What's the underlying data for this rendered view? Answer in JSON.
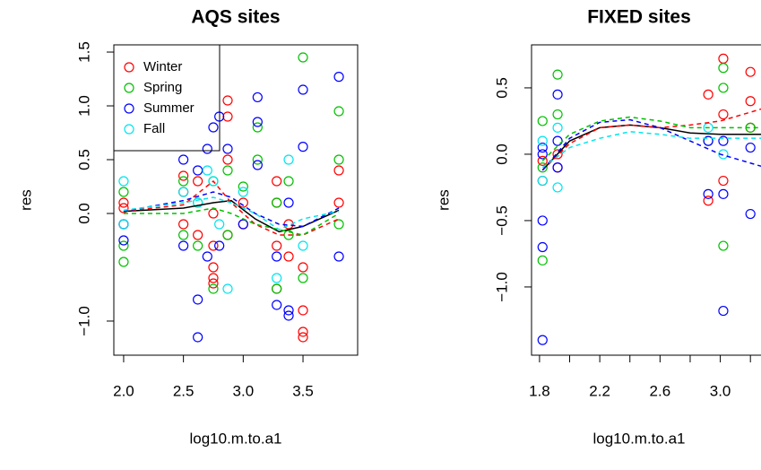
{
  "chart_data": [
    {
      "type": "scatter",
      "title": "AQS sites",
      "xlabel": "log10.m.to.a1",
      "ylabel": "res",
      "legend": "topleft",
      "xlim": [
        1.918,
        3.957
      ],
      "ylim": [
        -1.317,
        1.567
      ],
      "xticks": [
        {
          "value": 2.0,
          "label": "2.0"
        },
        {
          "value": 2.5,
          "label": "2.5"
        },
        {
          "value": 3.0,
          "label": "3.0"
        },
        {
          "value": 3.5,
          "label": "3.5"
        }
      ],
      "yticks": [
        {
          "value": -1.0,
          "label": "−1.0"
        },
        {
          "value": 0.0,
          "label": "0.0"
        },
        {
          "value": 0.5,
          "label": "0.5"
        },
        {
          "value": 1.0,
          "label": "1.0"
        },
        {
          "value": 1.5,
          "label": "1.5"
        }
      ],
      "series": [
        {
          "name": "Winter",
          "color": "#ff0000",
          "x": [
            2.0,
            2.0,
            2.0,
            2.5,
            2.5,
            2.5,
            2.62,
            2.62,
            2.75,
            2.75,
            2.75,
            2.75,
            2.75,
            2.87,
            2.87,
            2.87,
            2.87,
            3.0,
            3.0,
            3.28,
            3.28,
            3.28,
            3.28,
            3.38,
            3.38,
            3.5,
            3.5,
            3.5,
            3.5,
            3.8,
            3.8
          ],
          "values": [
            0.05,
            -0.1,
            0.1,
            0.2,
            -0.1,
            0.35,
            0.3,
            -0.2,
            -0.5,
            -0.6,
            -0.3,
            0.0,
            -0.65,
            0.9,
            1.05,
            0.5,
            -0.2,
            0.1,
            -0.1,
            0.3,
            -0.3,
            -0.7,
            0.1,
            -0.1,
            -0.4,
            -0.9,
            -1.1,
            -1.15,
            -0.5,
            0.4,
            0.1
          ]
        },
        {
          "name": "Spring",
          "color": "#00c000",
          "x": [
            2.0,
            2.0,
            2.0,
            2.5,
            2.5,
            2.62,
            2.62,
            2.75,
            2.75,
            2.87,
            2.87,
            3.0,
            3.12,
            3.12,
            3.28,
            3.28,
            3.38,
            3.38,
            3.5,
            3.5,
            3.8,
            3.8,
            3.8
          ],
          "values": [
            -0.3,
            -0.45,
            0.2,
            0.3,
            -0.2,
            0.1,
            -0.3,
            0.3,
            -0.7,
            -0.2,
            0.4,
            0.25,
            0.8,
            0.5,
            -0.7,
            0.1,
            0.3,
            -0.2,
            1.45,
            -0.6,
            0.95,
            0.5,
            -0.1
          ]
        },
        {
          "name": "Summer",
          "color": "#0000ff",
          "x": [
            2.0,
            2.0,
            2.5,
            2.5,
            2.62,
            2.62,
            2.62,
            2.7,
            2.7,
            2.75,
            2.8,
            2.8,
            2.87,
            3.0,
            3.12,
            3.12,
            3.12,
            3.28,
            3.28,
            3.38,
            3.38,
            3.38,
            3.5,
            3.5,
            3.8,
            3.8
          ],
          "values": [
            -0.1,
            -0.25,
            -0.3,
            0.5,
            -0.8,
            -1.15,
            0.4,
            0.6,
            -0.4,
            0.8,
            0.9,
            -0.3,
            0.6,
            -0.1,
            1.08,
            0.85,
            0.45,
            -0.85,
            -0.4,
            -0.9,
            -0.95,
            0.1,
            1.15,
            0.62,
            1.27,
            -0.4
          ]
        },
        {
          "name": "Fall",
          "color": "#00e5ee",
          "x": [
            2.0,
            2.0,
            2.5,
            2.62,
            2.7,
            2.75,
            2.8,
            2.87,
            3.0,
            3.28,
            3.38,
            3.5
          ],
          "values": [
            0.3,
            -0.1,
            0.2,
            0.1,
            0.4,
            0.3,
            -0.1,
            -0.7,
            0.2,
            -0.6,
            0.5,
            -0.3
          ]
        }
      ],
      "lines": [
        {
          "color": "#000000",
          "style": "solid",
          "x": [
            2.0,
            2.5,
            2.75,
            2.9,
            3.1,
            3.3,
            3.5,
            3.8
          ],
          "values": [
            0.02,
            0.05,
            0.1,
            0.12,
            -0.05,
            -0.17,
            -0.12,
            0.03
          ]
        },
        {
          "color": "#ff0000",
          "style": "dashed",
          "x": [
            2.0,
            2.5,
            2.75,
            2.9,
            3.1,
            3.3,
            3.5,
            3.8
          ],
          "values": [
            0.02,
            0.08,
            0.3,
            0.1,
            -0.1,
            -0.2,
            -0.2,
            -0.05
          ]
        },
        {
          "color": "#00c000",
          "style": "dashed",
          "x": [
            2.0,
            2.5,
            2.75,
            2.9,
            3.1,
            3.3,
            3.5,
            3.8
          ],
          "values": [
            0.0,
            0.0,
            0.05,
            0.0,
            -0.1,
            -0.15,
            -0.2,
            0.0
          ]
        },
        {
          "color": "#0000ff",
          "style": "dashed",
          "x": [
            2.0,
            2.5,
            2.75,
            2.9,
            3.1,
            3.3,
            3.5,
            3.8
          ],
          "values": [
            0.02,
            0.12,
            0.2,
            0.15,
            0.0,
            -0.1,
            -0.12,
            0.05
          ]
        },
        {
          "color": "#00e5ee",
          "style": "dashed",
          "x": [
            2.0,
            2.5,
            2.75,
            2.9,
            3.1,
            3.3,
            3.5,
            3.8
          ],
          "values": [
            0.03,
            0.1,
            0.15,
            0.1,
            0.0,
            -0.15,
            -0.05,
            0.02
          ]
        }
      ]
    },
    {
      "type": "scatter",
      "title": "FIXED sites",
      "xlabel": "log10.m.to.a1",
      "ylabel": "res",
      "xlim": [
        1.747,
        3.3
      ],
      "ylim": [
        -1.514,
        0.824
      ],
      "xticks": [
        {
          "value": 1.8,
          "label": "1.8"
        },
        {
          "value": 2.0,
          "label": null
        },
        {
          "value": 2.2,
          "label": "2.2"
        },
        {
          "value": 2.4,
          "label": null
        },
        {
          "value": 2.6,
          "label": "2.6"
        },
        {
          "value": 2.8,
          "label": null
        },
        {
          "value": 3.0,
          "label": "3.0"
        },
        {
          "value": 3.2,
          "label": null
        }
      ],
      "yticks": [
        {
          "value": -1.0,
          "label": "−1.0"
        },
        {
          "value": -0.5,
          "label": "−0.5"
        },
        {
          "value": 0.0,
          "label": "0.0"
        },
        {
          "value": 0.5,
          "label": "0.5"
        }
      ],
      "series": [
        {
          "color": "#ff0000",
          "x": [
            1.82,
            1.82,
            1.92,
            1.92,
            2.92,
            2.92,
            3.02,
            3.02,
            3.02,
            3.2,
            3.2,
            3.2
          ],
          "values": [
            -0.05,
            -0.2,
            0.0,
            -0.1,
            0.45,
            -0.35,
            0.72,
            0.3,
            -0.2,
            0.62,
            0.4,
            0.2
          ]
        },
        {
          "color": "#00c000",
          "x": [
            1.82,
            1.82,
            1.82,
            1.92,
            1.92,
            2.92,
            3.02,
            3.02,
            3.02,
            3.2
          ],
          "values": [
            0.25,
            -0.8,
            -0.1,
            0.6,
            0.3,
            0.1,
            0.65,
            0.5,
            -0.69,
            0.2
          ]
        },
        {
          "color": "#0000ff",
          "x": [
            1.82,
            1.82,
            1.82,
            1.82,
            1.82,
            1.92,
            1.92,
            1.92,
            2.92,
            2.92,
            3.02,
            3.02,
            3.02,
            3.2,
            3.2
          ],
          "values": [
            0.05,
            -0.5,
            -0.7,
            -1.4,
            0.0,
            0.45,
            0.1,
            -0.1,
            0.1,
            -0.3,
            0.1,
            -0.3,
            -1.18,
            -0.45,
            0.05
          ]
        },
        {
          "color": "#00e5ee",
          "x": [
            1.82,
            1.82,
            1.92,
            1.92,
            2.92,
            3.02
          ],
          "values": [
            -0.2,
            0.1,
            -0.25,
            0.2,
            0.2,
            0.0
          ]
        }
      ],
      "lines": [
        {
          "color": "#000000",
          "style": "solid",
          "x": [
            1.82,
            2.0,
            2.2,
            2.4,
            2.6,
            2.8,
            3.0,
            3.3
          ],
          "values": [
            -0.12,
            0.1,
            0.2,
            0.22,
            0.2,
            0.16,
            0.15,
            0.15
          ]
        },
        {
          "color": "#ff0000",
          "style": "dashed",
          "x": [
            1.82,
            2.0,
            2.2,
            2.4,
            2.6,
            2.8,
            3.0,
            3.3
          ],
          "values": [
            -0.12,
            0.08,
            0.2,
            0.22,
            0.2,
            0.22,
            0.25,
            0.35
          ]
        },
        {
          "color": "#00c000",
          "style": "dashed",
          "x": [
            1.82,
            2.0,
            2.2,
            2.4,
            2.6,
            2.8,
            3.0,
            3.3
          ],
          "values": [
            -0.05,
            0.15,
            0.25,
            0.28,
            0.25,
            0.2,
            0.2,
            0.2
          ]
        },
        {
          "color": "#0000ff",
          "style": "dashed",
          "x": [
            1.82,
            2.0,
            2.2,
            2.4,
            2.6,
            2.8,
            3.0,
            3.3
          ],
          "values": [
            -0.12,
            0.12,
            0.24,
            0.26,
            0.2,
            0.1,
            0.0,
            -0.1
          ]
        },
        {
          "color": "#00e5ee",
          "style": "dashed",
          "x": [
            1.82,
            2.0,
            2.2,
            2.4,
            2.6,
            2.8,
            3.0,
            3.3
          ],
          "values": [
            -0.1,
            0.05,
            0.12,
            0.17,
            0.15,
            0.12,
            0.12,
            0.12
          ]
        }
      ]
    }
  ]
}
